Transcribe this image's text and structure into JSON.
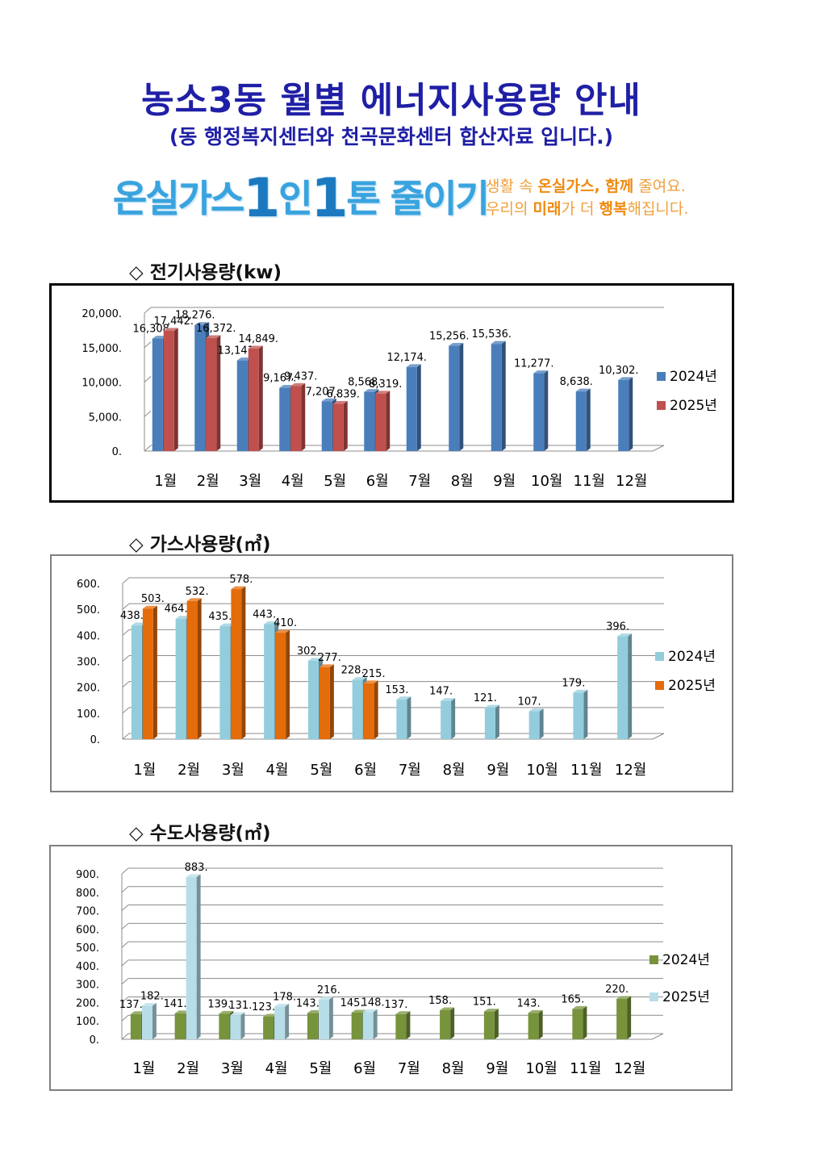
{
  "header": {
    "title": "농소3동 월별 에너지사용량 안내",
    "subtitle": "(동 행정복지센터와 천곡문화센터 합산자료 입니다.)"
  },
  "banner": {
    "main_a": "온실가스",
    "main_1a": "1",
    "main_b": "인",
    "main_1b": "1",
    "main_c": "톤 줄이기",
    "sub_line1_a": "생활 속 ",
    "sub_line1_b": "온실가스, 함께",
    "sub_line1_c": " 줄여요.",
    "sub_line2_a": "우리의 ",
    "sub_line2_b": "미래",
    "sub_line2_c": "가 더 ",
    "sub_line2_d": "행복",
    "sub_line2_e": "해집니다."
  },
  "sections": {
    "electricity_title": "◇ 전기사용량(kw)",
    "gas_title": "◇ 가스사용량(㎥)",
    "water_title": "◇ 수도사용량(㎥)"
  },
  "chart_data": [
    {
      "id": "electricity",
      "type": "bar",
      "title": "",
      "categories": [
        "1월",
        "2월",
        "3월",
        "4월",
        "5월",
        "6월",
        "7월",
        "8월",
        "9월",
        "10월",
        "11월",
        "12월"
      ],
      "ylim": [
        0,
        20000
      ],
      "yticks": [
        0,
        5000,
        10000,
        15000,
        20000
      ],
      "ytick_labels": [
        "0.",
        "5,000.",
        "10,000.",
        "15,000.",
        "20,000."
      ],
      "grid": true,
      "legend": "right",
      "series": [
        {
          "name": "2024년",
          "color": "#4a7ebb",
          "values": [
            16308,
            18276,
            13141,
            9167,
            7207,
            8568,
            12174,
            15256,
            15536,
            11277,
            8638,
            10302
          ],
          "labels": [
            "16,308.",
            "18,276.",
            "13,141.",
            "9,167.",
            "7,207.",
            "8,568.",
            "12,174.",
            "15,256.",
            "15,536.",
            "11,277.",
            "8,638.",
            "10,302."
          ]
        },
        {
          "name": "2025년",
          "color": "#c0504d",
          "values": [
            17442,
            16372,
            14849,
            9437,
            6839,
            8319,
            null,
            null,
            null,
            null,
            null,
            null
          ],
          "labels": [
            "17,442.",
            "16,372.",
            "14,849.",
            "9,437.",
            "6,839.",
            "8,319.",
            null,
            null,
            null,
            null,
            null,
            null
          ]
        }
      ]
    },
    {
      "id": "gas",
      "type": "bar",
      "title": "",
      "categories": [
        "1월",
        "2월",
        "3월",
        "4월",
        "5월",
        "6월",
        "7월",
        "8월",
        "9월",
        "10월",
        "11월",
        "12월"
      ],
      "ylim": [
        0,
        600
      ],
      "yticks": [
        0,
        100,
        200,
        300,
        400,
        500,
        600
      ],
      "ytick_labels": [
        "0.",
        "100.",
        "200.",
        "300.",
        "400.",
        "500.",
        "600."
      ],
      "grid": true,
      "legend": "right",
      "series": [
        {
          "name": "2024년",
          "color": "#93cddd",
          "values": [
            438,
            464,
            435,
            443,
            302,
            228,
            153,
            147,
            121,
            107,
            179,
            396
          ],
          "labels": [
            "438.",
            "464.",
            "435.",
            "443.",
            "302.",
            "228.",
            "153.",
            "147.",
            "121.",
            "107.",
            "179.",
            "396."
          ]
        },
        {
          "name": "2025년",
          "color": "#e46c0a",
          "values": [
            503,
            532,
            578,
            410,
            277,
            215,
            null,
            null,
            null,
            null,
            null,
            null
          ],
          "labels": [
            "503.",
            "532.",
            "578.",
            "410.",
            "277.",
            "215.",
            null,
            null,
            null,
            null,
            null,
            null
          ]
        }
      ]
    },
    {
      "id": "water",
      "type": "bar",
      "title": "",
      "categories": [
        "1월",
        "2월",
        "3월",
        "4월",
        "5월",
        "6월",
        "7월",
        "8월",
        "9월",
        "10월",
        "11월",
        "12월"
      ],
      "ylim": [
        0,
        900
      ],
      "yticks": [
        0,
        100,
        200,
        300,
        400,
        500,
        600,
        700,
        800,
        900
      ],
      "ytick_labels": [
        "0.",
        "100.",
        "200.",
        "300.",
        "400.",
        "500.",
        "600.",
        "700.",
        "800.",
        "900."
      ],
      "grid": true,
      "legend": "right",
      "series": [
        {
          "name": "2024년",
          "color": "#77933c",
          "values": [
            137,
            141,
            139,
            123,
            143,
            145,
            137,
            158,
            151,
            143,
            165,
            220
          ],
          "labels": [
            "137.",
            "141.",
            "139.",
            "123.",
            "143.",
            "145.",
            "137.",
            "158.",
            "151.",
            "143.",
            "165.",
            "220."
          ]
        },
        {
          "name": "2025년",
          "color": "#b7dee8",
          "values": [
            182,
            883,
            131,
            178,
            216,
            148,
            null,
            null,
            null,
            null,
            null,
            null
          ],
          "labels": [
            "182.",
            "883.",
            "131.",
            "178.",
            "216.",
            "148.",
            null,
            null,
            null,
            null,
            null,
            null
          ]
        }
      ]
    }
  ]
}
